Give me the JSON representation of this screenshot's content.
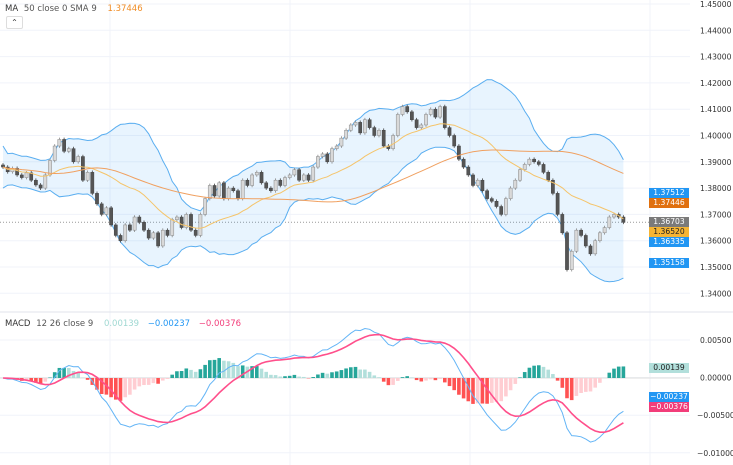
{
  "price_legend": {
    "name": "MA",
    "params": "50 close 0 SMA 9",
    "value": "1.37446",
    "value_color": "#f08c24"
  },
  "macd_legend": {
    "name": "MACD",
    "params": "12 26 close 9",
    "hist": "0.00139",
    "macd": "−0.00237",
    "signal": "−0.00376"
  },
  "collapse_icon": "chevron-up-icon",
  "colors": {
    "up": "#d9d9d9",
    "down": "#555555",
    "bb_line": "#5aaef0",
    "bb_fill": "rgba(33,150,243,0.10)",
    "ma50": "#f0a060",
    "basis": "#f5c46a",
    "macd_line": "#64b5f6",
    "signal_line": "#ff4f8b",
    "hist_up_strong": "#26a69a",
    "hist_up_weak": "#b2dfdb",
    "hist_dn_strong": "#ff5252",
    "hist_dn_weak": "#ffcdd2"
  },
  "price_tags": [
    {
      "text": "1.37512",
      "bg": "#2196f3",
      "fg": "#ffffff"
    },
    {
      "text": "1.37446",
      "bg": "#e0700f",
      "fg": "#ffffff"
    },
    {
      "text": "1.36703",
      "bg": "#7a7a7a",
      "fg": "#ffffff"
    },
    {
      "text": "1.36520",
      "bg": "#f5b433",
      "fg": "#222222"
    },
    {
      "text": "1.36335",
      "bg": "#2196f3",
      "fg": "#ffffff"
    },
    {
      "text": "1.35158",
      "bg": "#2196f3",
      "fg": "#ffffff"
    }
  ],
  "macd_tags": [
    {
      "text": "0.00139",
      "bg": "#b2dfdb",
      "fg": "#222222"
    },
    {
      "text": "−0.00237",
      "bg": "#2196f3",
      "fg": "#ffffff"
    },
    {
      "text": "−0.00376",
      "bg": "#f23d7a",
      "fg": "#ffffff"
    }
  ],
  "chart_data": [
    {
      "type": "candlestick",
      "ylim": [
        1.34,
        1.45
      ],
      "yticks": [
        "1.45000",
        "1.44000",
        "1.43000",
        "1.42000",
        "1.41000",
        "1.40000",
        "1.39000",
        "1.38000",
        "1.37000",
        "1.36000",
        "1.35000",
        "1.34000"
      ],
      "indicators": [
        "MA 50 close 0 SMA 9",
        "Bollinger Bands 20 2"
      ],
      "last_price": 1.36703,
      "close": [
        1.388,
        1.3862,
        1.3875,
        1.385,
        1.384,
        1.3858,
        1.383,
        1.3812,
        1.38,
        1.385,
        1.3905,
        1.396,
        1.3985,
        1.394,
        1.395,
        1.39,
        1.392,
        1.383,
        1.386,
        1.378,
        1.374,
        1.37,
        1.3725,
        1.366,
        1.362,
        1.36,
        1.366,
        1.364,
        1.369,
        1.367,
        1.364,
        1.361,
        1.363,
        1.358,
        1.364,
        1.362,
        1.368,
        1.369,
        1.365,
        1.37,
        1.364,
        1.362,
        1.37,
        1.376,
        1.381,
        1.377,
        1.382,
        1.376,
        1.38,
        1.379,
        1.376,
        1.383,
        1.381,
        1.385,
        1.386,
        1.382,
        1.38,
        1.379,
        1.383,
        1.381,
        1.384,
        1.385,
        1.387,
        1.383,
        1.385,
        1.383,
        1.388,
        1.392,
        1.393,
        1.39,
        1.395,
        1.396,
        1.399,
        1.402,
        1.404,
        1.405,
        1.401,
        1.406,
        1.403,
        1.4,
        1.402,
        1.396,
        1.395,
        1.4,
        1.408,
        1.411,
        1.409,
        1.406,
        1.403,
        1.404,
        1.408,
        1.41,
        1.407,
        1.411,
        1.403,
        1.4,
        1.396,
        1.391,
        1.388,
        1.385,
        1.381,
        1.383,
        1.379,
        1.376,
        1.375,
        1.373,
        1.37,
        1.376,
        1.38,
        1.383,
        1.387,
        1.389,
        1.391,
        1.39,
        1.389,
        1.386,
        1.383,
        1.378,
        1.37,
        1.363,
        1.349,
        1.356,
        1.364,
        1.362,
        1.358,
        1.355,
        1.36,
        1.363,
        1.365,
        1.369,
        1.37,
        1.369,
        1.367
      ]
    },
    {
      "type": "macd",
      "ylim": [
        -0.0105,
        0.0055
      ],
      "yticks": [
        "0.00500",
        "0.00000",
        "−0.00500",
        "−0.01000"
      ],
      "params": "12 26 close 9"
    }
  ]
}
